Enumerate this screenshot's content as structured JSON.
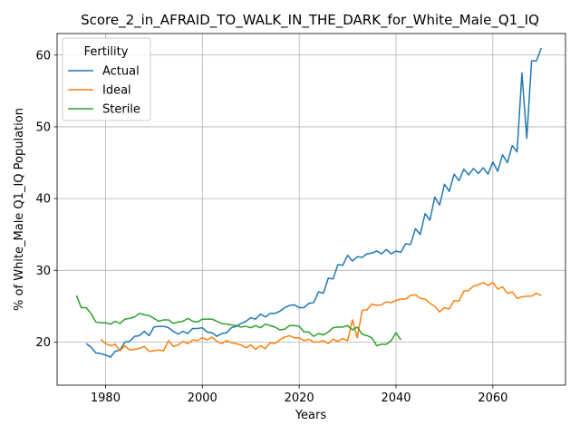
{
  "chart_data": {
    "type": "line",
    "title": "Score_2_in_AFRAID_TO_WALK_IN_THE_DARK_for_White_Male_Q1_IQ",
    "xlabel": "Years",
    "ylabel": "% of White_Male Q1_IQ Population",
    "xlim": [
      1970,
      2075
    ],
    "ylim": [
      14,
      63
    ],
    "xticks": [
      1980,
      2000,
      2020,
      2040,
      2060
    ],
    "yticks": [
      20,
      30,
      40,
      50,
      60
    ],
    "grid": true,
    "legend": {
      "title": "Fertility",
      "position": "top-left"
    },
    "series": [
      {
        "name": "Actual",
        "color": "#1f77b4",
        "x": [
          1976,
          1977,
          1978,
          1979,
          1980,
          1981,
          1982,
          1983,
          1984,
          1985,
          1986,
          1987,
          1988,
          1989,
          1990,
          1991,
          1992,
          1993,
          1994,
          1995,
          1996,
          1997,
          1998,
          1999,
          2000,
          2001,
          2002,
          2003,
          2004,
          2005,
          2006,
          2007,
          2008,
          2009,
          2010,
          2011,
          2012,
          2013,
          2014,
          2015,
          2016,
          2017,
          2018,
          2019,
          2020,
          2021,
          2022,
          2023,
          2024,
          2025,
          2026,
          2027,
          2028,
          2029,
          2030,
          2031,
          2032,
          2033,
          2034,
          2035,
          2036,
          2037,
          2038,
          2039,
          2040,
          2041,
          2042,
          2043,
          2044,
          2045,
          2046,
          2047,
          2048,
          2049,
          2050,
          2051,
          2052,
          2053,
          2054,
          2055,
          2056,
          2057,
          2058,
          2059,
          2060,
          2061,
          2062,
          2063,
          2064,
          2065,
          2066,
          2067,
          2068,
          2069,
          2070
        ],
        "values": [
          19.8,
          19.3,
          18.5,
          18.4,
          18.2,
          17.9,
          18.7,
          18.9,
          20.0,
          20.1,
          20.8,
          20.9,
          21.5,
          20.9,
          22.1,
          22.2,
          22.2,
          22.0,
          21.5,
          21.1,
          21.5,
          21.2,
          21.9,
          21.9,
          22.0,
          21.4,
          21.3,
          20.8,
          21.2,
          21.3,
          22.0,
          22.2,
          22.6,
          22.9,
          23.4,
          23.2,
          23.9,
          23.5,
          24.0,
          24.0,
          24.3,
          24.8,
          25.1,
          25.2,
          24.8,
          24.8,
          25.4,
          25.5,
          27.0,
          26.8,
          28.9,
          28.8,
          30.8,
          30.7,
          32.1,
          31.3,
          31.9,
          31.8,
          32.3,
          32.4,
          32.7,
          32.3,
          32.9,
          32.3,
          32.7,
          32.5,
          33.7,
          33.6,
          35.8,
          35.0,
          37.9,
          37.0,
          40.2,
          39.1,
          42.0,
          41.0,
          43.4,
          42.5,
          44.1,
          43.3,
          44.2,
          43.5,
          44.3,
          43.4,
          45.1,
          43.8,
          46.1,
          45.0,
          47.4,
          46.5,
          57.5,
          48.4,
          59.2,
          59.2,
          61.0
        ]
      },
      {
        "name": "Ideal",
        "color": "#ff7f0e",
        "x": [
          1979,
          1980,
          1981,
          1982,
          1983,
          1984,
          1985,
          1986,
          1987,
          1988,
          1989,
          1990,
          1991,
          1992,
          1993,
          1994,
          1995,
          1996,
          1997,
          1998,
          1999,
          2000,
          2001,
          2002,
          2003,
          2004,
          2005,
          2006,
          2007,
          2008,
          2009,
          2010,
          2011,
          2012,
          2013,
          2014,
          2015,
          2016,
          2017,
          2018,
          2019,
          2020,
          2021,
          2022,
          2023,
          2024,
          2025,
          2026,
          2027,
          2028,
          2029,
          2030,
          2031,
          2032,
          2033,
          2034,
          2035,
          2036,
          2037,
          2038,
          2039,
          2040,
          2041,
          2042,
          2043,
          2044,
          2045,
          2046,
          2047,
          2048,
          2049,
          2050,
          2051,
          2052,
          2053,
          2054,
          2055,
          2056,
          2057,
          2058,
          2059,
          2060,
          2061,
          2062,
          2063,
          2064,
          2065,
          2066,
          2067,
          2068,
          2069,
          2070
        ],
        "values": [
          20.4,
          19.8,
          19.5,
          19.7,
          18.8,
          19.5,
          18.9,
          19.0,
          19.1,
          19.4,
          18.7,
          18.8,
          18.9,
          18.8,
          20.2,
          19.4,
          19.6,
          20.1,
          19.8,
          20.3,
          20.2,
          20.6,
          20.3,
          20.7,
          20.1,
          19.8,
          20.2,
          19.9,
          19.8,
          19.6,
          19.2,
          19.6,
          19.0,
          19.5,
          19.1,
          19.9,
          19.8,
          20.3,
          20.7,
          20.9,
          20.6,
          20.6,
          20.2,
          20.4,
          20.0,
          20.0,
          20.2,
          19.8,
          20.4,
          20.1,
          20.5,
          20.2,
          23.1,
          20.6,
          24.4,
          24.5,
          25.3,
          25.1,
          25.2,
          25.6,
          25.5,
          25.8,
          26.0,
          26.0,
          26.5,
          26.6,
          26.1,
          26.0,
          25.4,
          25.0,
          24.2,
          24.8,
          24.6,
          25.8,
          25.7,
          27.1,
          27.2,
          27.8,
          28.0,
          28.3,
          27.9,
          28.3,
          27.4,
          27.7,
          26.8,
          27.0,
          26.1,
          26.3,
          26.4,
          26.4,
          26.8,
          26.5
        ]
      },
      {
        "name": "Sterile",
        "color": "#2ca02c",
        "x": [
          1974,
          1975,
          1976,
          1977,
          1978,
          1979,
          1980,
          1981,
          1982,
          1983,
          1984,
          1985,
          1986,
          1987,
          1988,
          1989,
          1990,
          1991,
          1992,
          1993,
          1994,
          1995,
          1996,
          1997,
          1998,
          1999,
          2000,
          2001,
          2002,
          2003,
          2004,
          2005,
          2006,
          2007,
          2008,
          2009,
          2010,
          2011,
          2012,
          2013,
          2014,
          2015,
          2016,
          2017,
          2018,
          2019,
          2020,
          2021,
          2022,
          2023,
          2024,
          2025,
          2026,
          2027,
          2028,
          2029,
          2030,
          2031,
          2032,
          2033,
          2034,
          2035,
          2036,
          2037,
          2038,
          2039,
          2040,
          2041
        ],
        "values": [
          26.5,
          24.8,
          24.8,
          24.0,
          22.8,
          22.7,
          22.7,
          22.5,
          22.9,
          22.6,
          23.2,
          23.3,
          23.5,
          24.0,
          23.8,
          23.7,
          23.3,
          22.9,
          23.1,
          23.1,
          22.6,
          22.8,
          22.9,
          23.3,
          22.9,
          22.8,
          23.2,
          23.2,
          23.2,
          22.9,
          22.6,
          22.5,
          22.4,
          22.3,
          22.1,
          22.2,
          22.0,
          22.3,
          22.0,
          22.5,
          22.3,
          22.1,
          21.7,
          21.8,
          22.3,
          22.3,
          22.2,
          21.4,
          21.4,
          20.8,
          21.2,
          21.0,
          21.4,
          22.0,
          22.1,
          22.1,
          22.3,
          21.7,
          22.1,
          21.1,
          20.9,
          20.6,
          19.5,
          19.7,
          19.7,
          20.2,
          21.3,
          20.3
        ]
      }
    ]
  }
}
